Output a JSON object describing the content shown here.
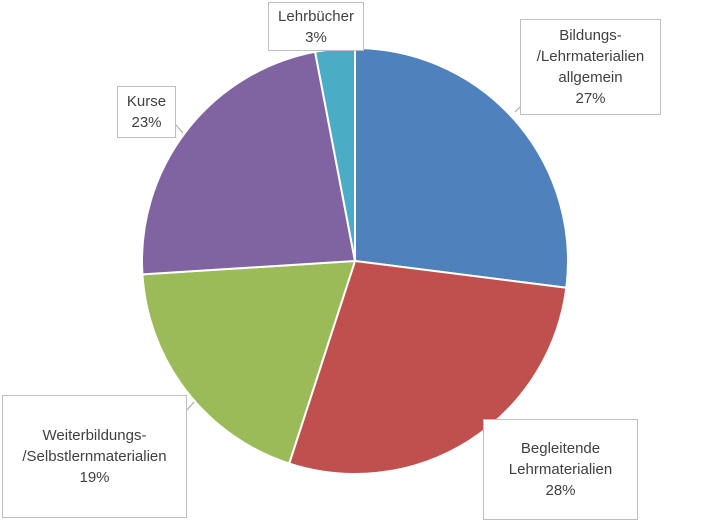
{
  "chart_data": {
    "type": "pie",
    "categories": [
      "Bildungs-/Lehrmaterialien allgemein",
      "Begleitende Lehrmaterialien",
      "Weiterbildungs-/Selbstlernmaterialien",
      "Kurse",
      "Lehrbücher"
    ],
    "values": [
      27,
      28,
      19,
      23,
      3
    ],
    "unit": "%",
    "colors": [
      "#4f81bd",
      "#c0504d",
      "#9bbb59",
      "#8064a2",
      "#4bacc6"
    ],
    "labels": [
      {
        "lines": [
          "Bildungs-",
          "/Lehrmaterialien",
          "allgemein"
        ],
        "value": "27%"
      },
      {
        "lines": [
          "Begleitende",
          "Lehrmaterialien"
        ],
        "value": "28%"
      },
      {
        "lines": [
          "Weiterbildungs-",
          "/Selbstlernmaterialien"
        ],
        "value": "19%"
      },
      {
        "lines": [
          "Kurse"
        ],
        "value": "23%"
      },
      {
        "lines": [
          "Lehrbücher"
        ],
        "value": "3%"
      }
    ],
    "legend": "none"
  }
}
